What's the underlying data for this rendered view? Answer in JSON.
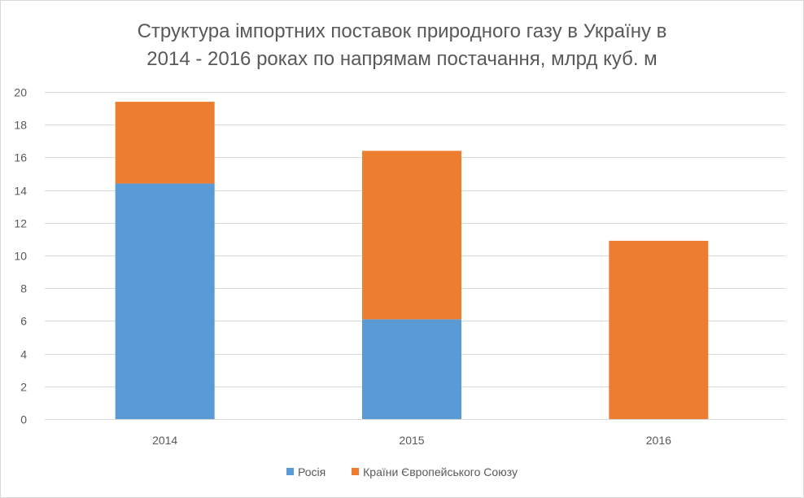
{
  "chart_data": {
    "type": "bar",
    "stacked": true,
    "title_line1": "Структура імпортних поставок природного газу в Україну в",
    "title_line2": "2014 - 2016 роках по напрямам постачання, млрд куб. м",
    "categories": [
      "2014",
      "2015",
      "2016"
    ],
    "series": [
      {
        "name": "Росія",
        "color": "#5b9bd5",
        "values": [
          14.4,
          6.1,
          0
        ]
      },
      {
        "name": "Країни Європейського Союзу",
        "color": "#ed7d31",
        "values": [
          5.0,
          10.3,
          10.9
        ]
      }
    ],
    "ylim": [
      0,
      20
    ],
    "yticks": [
      "0",
      "2",
      "4",
      "6",
      "8",
      "10",
      "12",
      "14",
      "16",
      "18",
      "20"
    ],
    "grid": true,
    "legend_position": "bottom"
  }
}
